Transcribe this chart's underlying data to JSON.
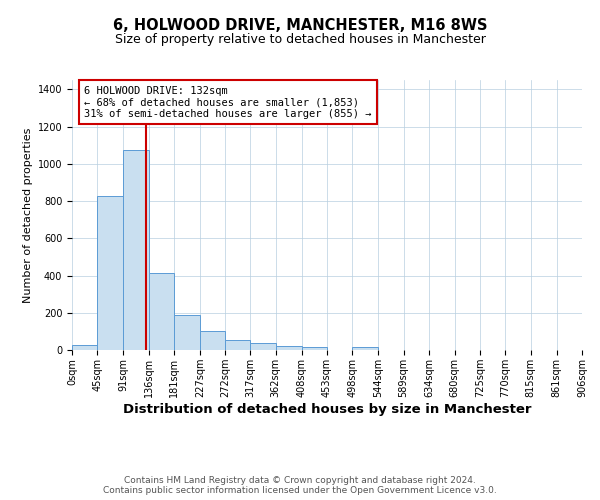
{
  "title": "6, HOLWOOD DRIVE, MANCHESTER, M16 8WS",
  "subtitle": "Size of property relative to detached houses in Manchester",
  "xlabel": "Distribution of detached houses by size in Manchester",
  "ylabel": "Number of detached properties",
  "bar_color": "#c9dff0",
  "bar_edge_color": "#5b9bd5",
  "property_line_x": 132,
  "property_line_color": "#cc0000",
  "annotation_text": "6 HOLWOOD DRIVE: 132sqm\n← 68% of detached houses are smaller (1,853)\n31% of semi-detached houses are larger (855) →",
  "annotation_box_color": "#ffffff",
  "annotation_box_edge_color": "#cc0000",
  "bin_edges": [
    0,
    45,
    91,
    136,
    181,
    227,
    272,
    317,
    362,
    408,
    453,
    498,
    544,
    589,
    634,
    680,
    725,
    770,
    815,
    861,
    906
  ],
  "bar_heights": [
    25,
    825,
    1075,
    415,
    190,
    100,
    55,
    35,
    20,
    15,
    0,
    15,
    0,
    0,
    0,
    0,
    0,
    0,
    0,
    0
  ],
  "ylim": [
    0,
    1450
  ],
  "yticks": [
    0,
    200,
    400,
    600,
    800,
    1000,
    1200,
    1400
  ],
  "tick_labels": [
    "0sqm",
    "45sqm",
    "91sqm",
    "136sqm",
    "181sqm",
    "227sqm",
    "272sqm",
    "317sqm",
    "362sqm",
    "408sqm",
    "453sqm",
    "498sqm",
    "544sqm",
    "589sqm",
    "634sqm",
    "680sqm",
    "725sqm",
    "770sqm",
    "815sqm",
    "861sqm",
    "906sqm"
  ],
  "footer_text": "Contains HM Land Registry data © Crown copyright and database right 2024.\nContains public sector information licensed under the Open Government Licence v3.0.",
  "background_color": "#ffffff",
  "grid_color": "#b8cfe0",
  "title_fontsize": 10.5,
  "subtitle_fontsize": 9,
  "xlabel_fontsize": 9.5,
  "ylabel_fontsize": 8,
  "tick_fontsize": 7,
  "footer_fontsize": 6.5,
  "annotation_fontsize": 7.5
}
